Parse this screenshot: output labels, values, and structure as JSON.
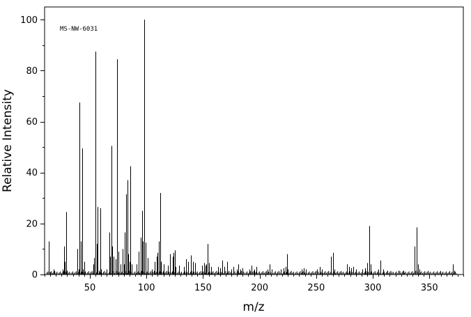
{
  "chart_data": {
    "type": "bar",
    "title": "",
    "annotation": "MS-NW-6031",
    "xlabel": "m/z",
    "ylabel": "Relative Intensity",
    "xlim": [
      10,
      380
    ],
    "ylim": [
      0,
      105
    ],
    "xticks": [
      50,
      100,
      150,
      200,
      250,
      300,
      350
    ],
    "yticks": [
      0,
      20,
      40,
      60,
      80,
      100
    ],
    "grid": false,
    "peaks": [
      [
        14,
        13
      ],
      [
        15,
        1
      ],
      [
        18,
        2
      ],
      [
        26,
        2
      ],
      [
        27,
        11
      ],
      [
        28,
        5
      ],
      [
        29,
        24.5
      ],
      [
        30,
        1.5
      ],
      [
        39,
        10
      ],
      [
        40,
        2
      ],
      [
        41,
        67.5
      ],
      [
        42,
        13
      ],
      [
        43,
        49.5
      ],
      [
        44,
        2
      ],
      [
        45,
        5
      ],
      [
        53,
        4
      ],
      [
        54,
        6.5
      ],
      [
        55,
        87.5
      ],
      [
        56,
        12
      ],
      [
        57,
        26.5
      ],
      [
        58,
        1.5
      ],
      [
        59,
        26
      ],
      [
        60,
        2
      ],
      [
        65,
        2
      ],
      [
        67,
        16.5
      ],
      [
        68,
        7
      ],
      [
        69,
        50.5
      ],
      [
        70,
        11
      ],
      [
        71,
        7
      ],
      [
        73,
        6
      ],
      [
        74,
        84.5
      ],
      [
        75,
        9
      ],
      [
        77,
        4
      ],
      [
        79,
        10
      ],
      [
        80,
        4
      ],
      [
        81,
        16.5
      ],
      [
        82,
        31.5
      ],
      [
        83,
        37
      ],
      [
        84,
        8
      ],
      [
        85,
        5
      ],
      [
        86,
        42.5
      ],
      [
        87,
        4
      ],
      [
        91,
        4
      ],
      [
        93,
        9
      ],
      [
        95,
        14.5
      ],
      [
        96,
        25
      ],
      [
        97,
        13
      ],
      [
        98,
        100
      ],
      [
        99,
        12.5
      ],
      [
        101,
        6.5
      ],
      [
        105,
        2
      ],
      [
        107,
        5
      ],
      [
        109,
        7
      ],
      [
        110,
        8.5
      ],
      [
        111,
        13
      ],
      [
        112,
        32
      ],
      [
        113,
        5
      ],
      [
        115,
        4
      ],
      [
        119,
        3.5
      ],
      [
        121,
        8
      ],
      [
        123,
        7
      ],
      [
        124,
        8.5
      ],
      [
        125,
        9.5
      ],
      [
        126,
        3
      ],
      [
        129,
        3.5
      ],
      [
        133,
        3
      ],
      [
        135,
        6
      ],
      [
        137,
        5
      ],
      [
        139,
        7.5
      ],
      [
        141,
        5
      ],
      [
        143,
        4.5
      ],
      [
        149,
        3.5
      ],
      [
        151,
        4.5
      ],
      [
        152,
        3.5
      ],
      [
        153,
        4
      ],
      [
        154,
        12
      ],
      [
        155,
        4.5
      ],
      [
        157,
        3
      ],
      [
        163,
        3
      ],
      [
        165,
        2.5
      ],
      [
        167,
        5.5
      ],
      [
        169,
        3
      ],
      [
        171,
        5
      ],
      [
        175,
        2
      ],
      [
        177,
        3
      ],
      [
        180,
        2
      ],
      [
        181,
        4
      ],
      [
        183,
        2
      ],
      [
        185,
        2.5
      ],
      [
        191,
        2
      ],
      [
        193,
        3.5
      ],
      [
        195,
        2
      ],
      [
        197,
        3
      ],
      [
        207,
        2
      ],
      [
        209,
        4
      ],
      [
        211,
        2
      ],
      [
        219,
        2
      ],
      [
        221,
        2.5
      ],
      [
        223,
        3
      ],
      [
        224,
        8
      ],
      [
        225,
        2
      ],
      [
        237,
        2
      ],
      [
        239,
        2.5
      ],
      [
        241,
        2
      ],
      [
        251,
        2
      ],
      [
        253,
        3
      ],
      [
        255,
        2
      ],
      [
        263,
        7
      ],
      [
        265,
        8.5
      ],
      [
        266,
        2
      ],
      [
        277,
        4
      ],
      [
        279,
        3
      ],
      [
        281,
        2.5
      ],
      [
        283,
        3
      ],
      [
        285,
        2
      ],
      [
        291,
        2
      ],
      [
        293,
        2.5
      ],
      [
        295,
        4.5
      ],
      [
        297,
        19
      ],
      [
        298,
        4
      ],
      [
        305,
        2
      ],
      [
        307,
        5.5
      ],
      [
        309,
        2
      ],
      [
        313,
        1.5
      ],
      [
        323,
        1.5
      ],
      [
        327,
        1.5
      ],
      [
        337,
        11
      ],
      [
        339,
        18.5
      ],
      [
        340,
        4
      ],
      [
        341,
        2
      ],
      [
        371,
        4
      ],
      [
        372,
        1.5
      ]
    ]
  }
}
